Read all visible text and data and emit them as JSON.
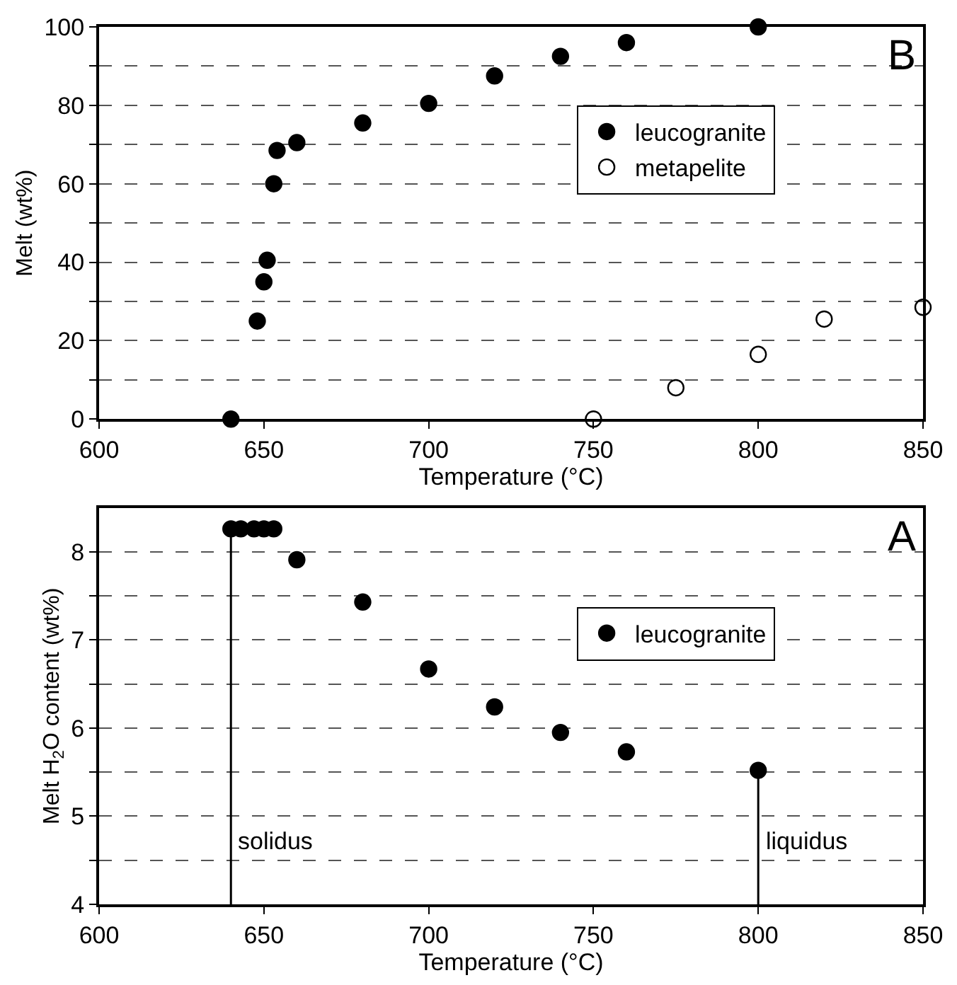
{
  "chart_data": [
    {
      "type": "scatter",
      "annotations": [
        "B"
      ],
      "xlabel": "Temperature (°C)",
      "ylabel": "Melt (wt%)",
      "xlim": [
        600,
        850
      ],
      "xticks": [
        600,
        650,
        700,
        750,
        800,
        850
      ],
      "ylim": [
        0,
        100
      ],
      "yticks": [
        0,
        {
          "value": 10,
          "label": null
        },
        20,
        {
          "value": 30,
          "label": null
        },
        40,
        {
          "value": 50,
          "label": null
        },
        60,
        {
          "value": 70,
          "label": null
        },
        80,
        {
          "value": 90,
          "label": null
        },
        100
      ],
      "grid": "y",
      "legend": "top right",
      "marker": "circle",
      "series": [
        {
          "name": "leucogranite",
          "color": "#000000",
          "x": [
            640,
            648,
            650,
            651,
            653,
            654,
            660,
            680,
            700,
            720,
            740,
            760,
            800
          ],
          "values": [
            0,
            25,
            35,
            40.5,
            60,
            68.5,
            70.5,
            75.5,
            80.5,
            87.5,
            92.5,
            96,
            100
          ]
        },
        {
          "name": "metapelite",
          "color": "#000000",
          "marker": "circle-open",
          "x": [
            750,
            775,
            800,
            820,
            850
          ],
          "values": [
            0,
            8,
            16.5,
            25.5,
            28.5
          ]
        }
      ]
    },
    {
      "type": "scatter",
      "annotations": [
        "A"
      ],
      "xlabel": "Temperature (°C)",
      "ylabel": "Melt H$_{2}$O content (wt%)",
      "xlim": [
        600,
        850
      ],
      "xticks": [
        600,
        650,
        700,
        750,
        800,
        850
      ],
      "ylim": [
        4,
        8.5
      ],
      "yticks": [
        4,
        {
          "value": 4.5,
          "label": null
        },
        5,
        {
          "value": 5.5,
          "label": null
        },
        6,
        {
          "value": 6.5,
          "label": null
        },
        7,
        {
          "value": 7.5,
          "label": null
        },
        8
      ],
      "grid": "y",
      "legend": "right",
      "marker": "circle",
      "ref_lines": [
        {
          "axis": "x",
          "value": 640,
          "label": "solidus"
        },
        {
          "axis": "x",
          "value": 800,
          "label": "liquidus"
        }
      ],
      "series": [
        {
          "name": "leucogranite",
          "color": "#000000",
          "x": [
            640,
            643,
            647,
            650,
            653,
            660,
            680,
            700,
            720,
            740,
            760,
            800
          ],
          "values": [
            8.26,
            8.26,
            8.26,
            8.26,
            8.26,
            7.91,
            7.43,
            6.67,
            6.24,
            5.95,
            5.73,
            5.52
          ]
        }
      ]
    }
  ]
}
